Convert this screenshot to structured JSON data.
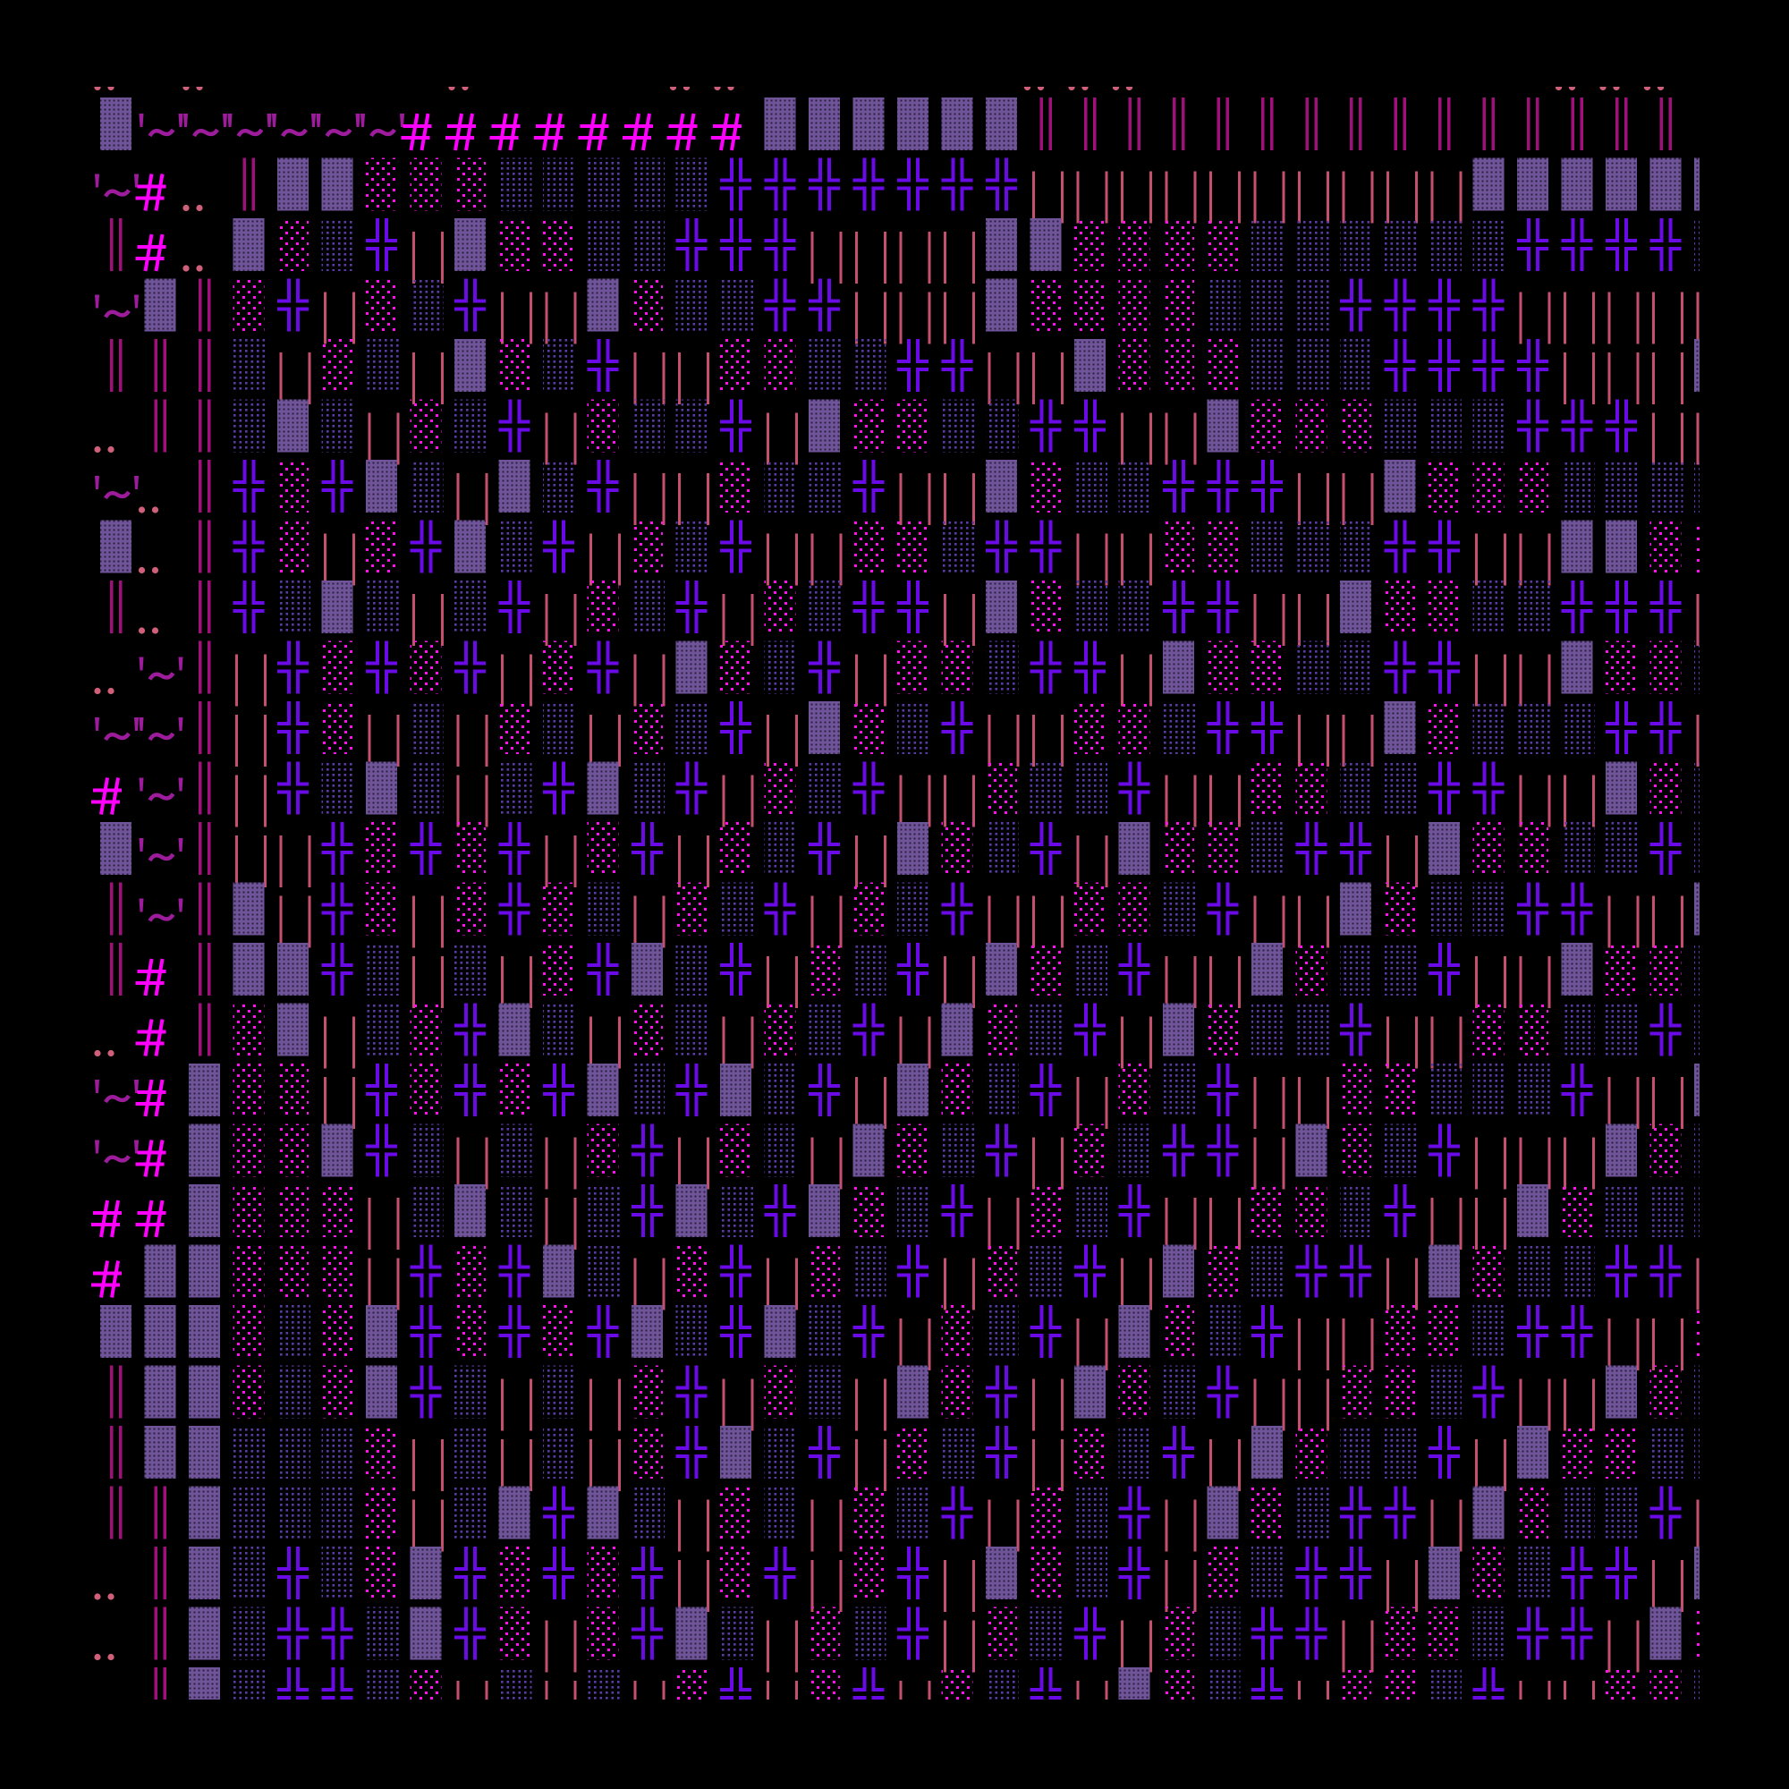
{
  "glyph_grid": {
    "top_partial_row": ". .     .    ..      ...         ... ",
    "rows": [
      "▓~~~~~~########▓▓▓▓▓▓‖‖‖‖‖‖‖‖‖‖‖‖‖‖‖‖",
      "~#.‖▓▓░░░▒▒▒▒▒╬╬╬╬╬╬╬||||||||||▓▓▓▓▓▓",
      "‖#.▓░▒╬|▓░░▒▒╬╬╬||||▓▓░░░░▒▒▒▒▒▒╬╬╬╬▒",
      "~▓‖░╬|░▒╬||▓░▒▒╬╬|||▓░░░░▒▒▒╬╬╬╬|||||",
      "‖‖‖▒|░▒|▓░▒╬||░░▒▒╬╬||▓░░░▒▒▒╬╬╬╬|||▓",
      ".‖‖▒▓▒|░▒╬|░▒▒╬|▓░░▒▒╬╬||▓░░░▒▒▒╬╬╬||",
      "~.‖╬░╬▓▒|▓▒╬||░▒▒╬||▓░▒▒╬╬╬||▓░░░▒▒▒▒",
      "▓.‖╬░|░╬▓▒╬|░▒╬||░░▒╬╬||░░▒▒▒╬╬||▓▓░░",
      "‖.‖╬▒▓▒|▒╬|░▒╬|░▒╬╬|▓░▒▒╬╬||▓░░▒▒╬╬╬|",
      ".~‖|╬░╬░╬|░╬|▓░▒╬|░░▒╬╬|▓░░▒▒╬╬||▓░░▒",
      "~~‖|╬░|▒|░▒|░▒╬|▓░▒╬||░░▒╬╬||▓░▒▒▒╬╬|",
      "#~‖|╬▒▓▒|▒╬▓▒╬|░▒╬||░▒▒╬||░░▒▒╬╬||▓░▒",
      "▓~‖||╬░╬░╬|░╬|░▒╬|▓░▒╬|▓░░▒╬╬|▓░░▒▒╬▒",
      "‖~‖▓|╬░|░╬░▒|░▒╬|░▒╬||░░▒╬||▓░▒▒╬╬||▓",
      "‖#‖▓▓╬▒|▒|░╬▓▒╬|░▒╬|▓░▒╬||▓░▒▒╬||▓░░▒",
      ".#‖░▓|▒░╬▓▒|░▒|░▒╬|▓░▒╬|▓░▒▒╬||░░▒▒╬▒",
      "~#▓░░|╬░╬░╬▓▒╬▓▒╬|▓░▒╬|░▒╬||░░▒▒▒╬||▓",
      "~#▓░░▓╬▒|▒|░╬|░▒|▓░▒╬|░▒╬╬|▓░▒╬|||▓░▒",
      "##▓░░░|▒▓▒|▒╬▓▒╬▓░▒╬|░▒╬||░░▒╬||▓░▒▒▒",
      "#▓▓░░░|╬░╬▓▒|░╬|░▒╬|░▒╬|▓░▒╬╬|▓░▒▒╬╬|",
      "▓▓▓░▒░▓╬░╬░╬▓▒╬▓▒╬|░▒╬|▓░▒╬||░░▒╬╬||░",
      "‖▓▓░▒░▓╬▒|▒|░╬|░▒|▓░╬|▓░▒╬||░░▒╬||▓░▒",
      "‖▓▓▒▒▒░|▒|▒|░╬▓▒╬|░▒╬|░▒╬|▓░▒▒╬|▓░░▒▒",
      "‖‖▓▒▒▒░|▒▓╬▓▒|░▒|░▒╬|░▒╬|▓░▒╬╬|▓░▒▒╬|",
      ".‖▓▒╬▒░▓╬░╬░╬|░╬|░╬|▓░▒╬|░▒╬╬|▓░▒╬╬|▓",
      ".‖▓▒╬╬▒▓╬░|░╬▓▒|░▒╬|░▒╬|░▒╬╬|░░▒╬╬|▓░",
      " ‖▓▒╬╬▒░|▒|▒|░╬|░╬|░▒╬|▓░▒╬|░░▒╬||░░▒"
    ]
  },
  "colors": {
    "background": "#000000",
    "dark_shade_block": "#6f549a",
    "light_shade_pink": "#ff10f0",
    "medium_shade_purple": "#5b3ba6",
    "double_cross": "#6a0ae6",
    "pink_bars": "#c4506e",
    "double_bar": "#a0107a",
    "hash": "#ff00ff",
    "tilde": "#9c1c9c",
    "dots": "#d0607a"
  }
}
